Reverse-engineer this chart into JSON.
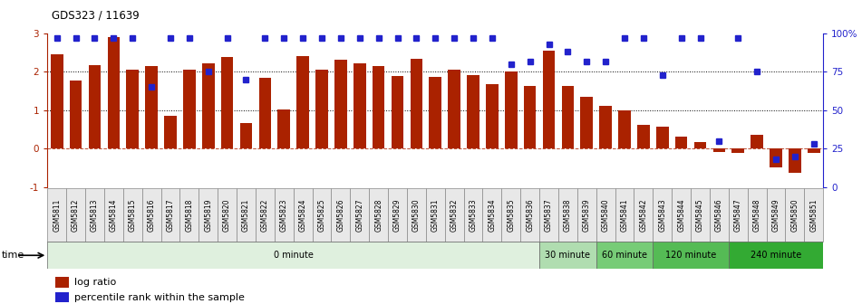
{
  "title": "GDS323 / 11639",
  "samples": [
    "GSM5811",
    "GSM5812",
    "GSM5813",
    "GSM5814",
    "GSM5815",
    "GSM5816",
    "GSM5817",
    "GSM5818",
    "GSM5819",
    "GSM5820",
    "GSM5821",
    "GSM5822",
    "GSM5823",
    "GSM5824",
    "GSM5825",
    "GSM5826",
    "GSM5827",
    "GSM5828",
    "GSM5829",
    "GSM5830",
    "GSM5831",
    "GSM5832",
    "GSM5833",
    "GSM5834",
    "GSM5835",
    "GSM5836",
    "GSM5837",
    "GSM5838",
    "GSM5839",
    "GSM5840",
    "GSM5841",
    "GSM5842",
    "GSM5843",
    "GSM5844",
    "GSM5845",
    "GSM5846",
    "GSM5847",
    "GSM5848",
    "GSM5849",
    "GSM5850",
    "GSM5851"
  ],
  "log_ratio": [
    2.45,
    1.78,
    2.17,
    2.9,
    2.05,
    2.15,
    0.85,
    2.05,
    2.22,
    2.38,
    0.67,
    1.85,
    1.02,
    2.42,
    2.05,
    2.32,
    2.22,
    2.15,
    1.88,
    2.35,
    1.87,
    2.05,
    1.92,
    1.68,
    2.0,
    1.62,
    2.55,
    1.62,
    1.35,
    1.12,
    1.0,
    0.62,
    0.58,
    0.3,
    0.17,
    -0.08,
    -0.12,
    0.35,
    -0.5,
    -0.63,
    -0.12
  ],
  "percentile": [
    97,
    97,
    97,
    97,
    97,
    65,
    97,
    97,
    75,
    97,
    70,
    97,
    97,
    97,
    97,
    97,
    97,
    97,
    97,
    97,
    97,
    97,
    97,
    97,
    80,
    82,
    93,
    88,
    82,
    82,
    97,
    97,
    73,
    97,
    97,
    30,
    97,
    75,
    18,
    20,
    28
  ],
  "time_groups": [
    {
      "label": "0 minute",
      "start": 0,
      "end": 26,
      "color": "#dff0de"
    },
    {
      "label": "30 minute",
      "start": 26,
      "end": 29,
      "color": "#b0ddb0"
    },
    {
      "label": "60 minute",
      "start": 29,
      "end": 32,
      "color": "#77cc77"
    },
    {
      "label": "120 minute",
      "start": 32,
      "end": 36,
      "color": "#55bb55"
    },
    {
      "label": "240 minute",
      "start": 36,
      "end": 41,
      "color": "#33aa33"
    }
  ],
  "bar_color": "#aa2200",
  "dot_color": "#2222cc",
  "ylim_left": [
    -1,
    3
  ],
  "ylim_right": [
    0,
    100
  ],
  "yticks_left": [
    -1,
    0,
    1,
    2,
    3
  ],
  "yticks_right": [
    0,
    25,
    50,
    75,
    100
  ],
  "ytick_labels_right": [
    "0",
    "25",
    "50",
    "75",
    "100%"
  ],
  "grid_values": [
    1.0,
    2.0
  ],
  "legend_log": "log ratio",
  "legend_pct": "percentile rank within the sample",
  "time_label": "time"
}
